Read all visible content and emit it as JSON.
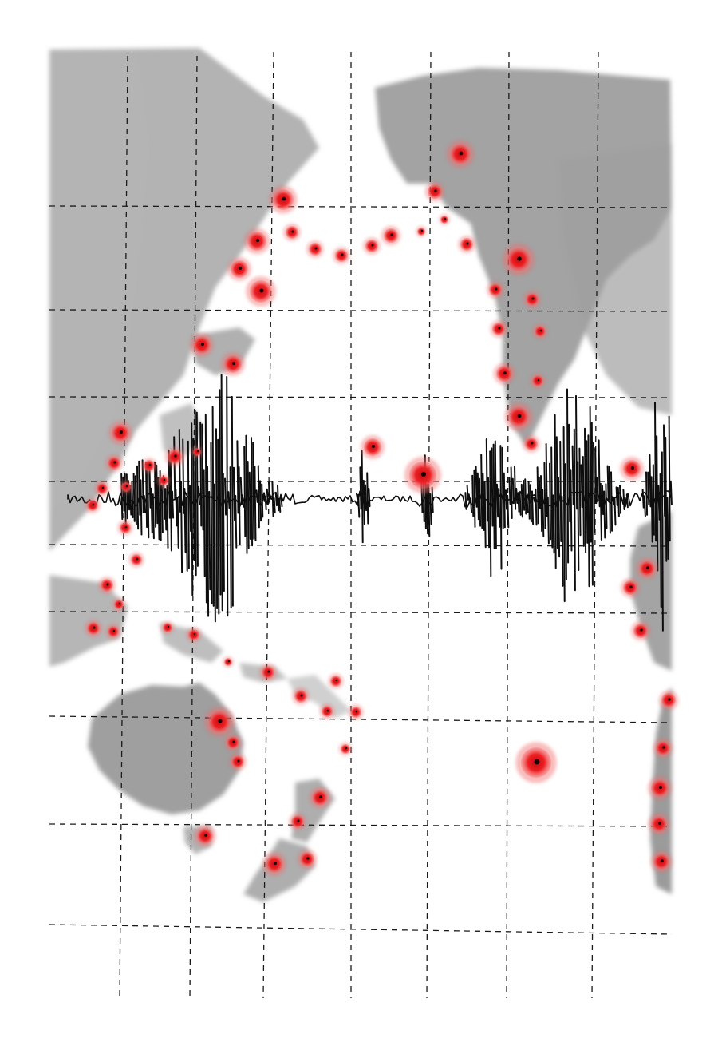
{
  "artwork": {
    "colors": {
      "paper": "#ffffff",
      "wash": "#8f8f8f",
      "wash_light": "#b9b9b9",
      "grid": "#1a1a1a",
      "ink": "#0d0d0d",
      "marker": "#e8191c",
      "marker_halo": "#f26a6a"
    }
  }
}
